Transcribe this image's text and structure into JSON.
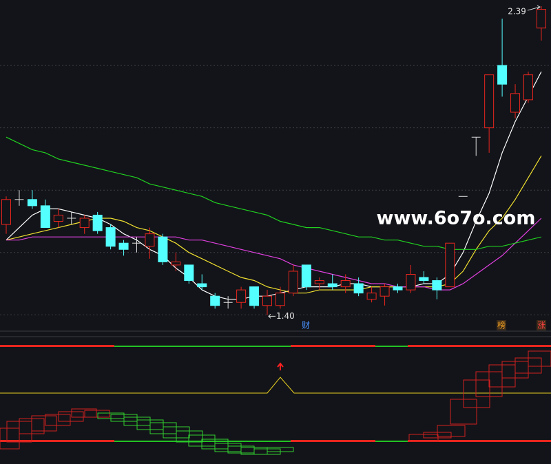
{
  "chart_data": {
    "type": "candlestick",
    "ylim": [
      1.35,
      2.41
    ],
    "grid_lines": [
      1.4,
      1.6,
      1.8,
      2.0,
      2.2
    ],
    "up_color": "#e8261e",
    "down_color": "#54ffff",
    "flat_color": "#e0e0e0",
    "open": [
      1.69,
      1.77,
      1.77,
      1.75,
      1.7,
      1.71,
      1.68,
      1.72,
      1.68,
      1.63,
      1.63,
      1.62,
      1.65,
      1.56,
      1.56,
      1.5,
      1.46,
      1.44,
      1.44,
      1.49,
      1.43,
      1.43,
      1.47,
      1.56,
      1.5,
      1.5,
      1.49,
      1.5,
      1.45,
      1.46,
      1.49,
      1.48,
      1.52,
      1.51,
      1.49,
      1.78,
      1.97,
      2.0,
      2.2,
      2.05,
      2.09,
      2.32
    ],
    "high": [
      1.78,
      1.8,
      1.8,
      1.77,
      1.74,
      1.73,
      1.72,
      1.73,
      1.69,
      1.64,
      1.65,
      1.68,
      1.66,
      1.6,
      1.56,
      1.53,
      1.47,
      1.46,
      1.49,
      1.49,
      1.48,
      1.49,
      1.56,
      1.56,
      1.52,
      1.53,
      1.53,
      1.52,
      1.49,
      1.5,
      1.5,
      1.56,
      1.54,
      1.52,
      1.63,
      1.78,
      1.97,
      2.17,
      2.35,
      2.14,
      2.18,
      2.39
    ],
    "low": [
      1.66,
      1.75,
      1.74,
      1.68,
      1.68,
      1.69,
      1.66,
      1.66,
      1.61,
      1.59,
      1.6,
      1.58,
      1.56,
      1.54,
      1.5,
      1.48,
      1.42,
      1.42,
      1.42,
      1.42,
      1.4,
      1.42,
      1.46,
      1.48,
      1.48,
      1.48,
      1.47,
      1.46,
      1.44,
      1.43,
      1.47,
      1.47,
      1.5,
      1.45,
      1.49,
      1.78,
      1.91,
      1.92,
      2.1,
      2.03,
      2.08,
      2.28
    ],
    "close": [
      1.77,
      1.77,
      1.75,
      1.68,
      1.72,
      1.71,
      1.71,
      1.67,
      1.62,
      1.61,
      1.63,
      1.66,
      1.57,
      1.57,
      1.51,
      1.49,
      1.43,
      1.44,
      1.48,
      1.43,
      1.46,
      1.47,
      1.54,
      1.49,
      1.51,
      1.49,
      1.51,
      1.47,
      1.47,
      1.49,
      1.48,
      1.53,
      1.51,
      1.48,
      1.63,
      1.78,
      1.97,
      2.17,
      2.14,
      2.11,
      2.17,
      2.38
    ],
    "lines": [
      {
        "color": "#ffffff",
        "values": [
          1.64,
          1.68,
          1.72,
          1.74,
          1.74,
          1.73,
          1.72,
          1.71,
          1.69,
          1.66,
          1.64,
          1.61,
          1.59,
          1.55,
          1.52,
          1.48,
          1.46,
          1.45,
          1.45,
          1.46,
          1.46,
          1.47,
          1.48,
          1.49,
          1.49,
          1.49,
          1.5,
          1.5,
          1.49,
          1.49,
          1.49,
          1.49,
          1.5,
          1.5,
          1.53,
          1.6,
          1.7,
          1.79,
          1.92,
          2.02,
          2.1,
          2.18
        ]
      },
      {
        "color": "#f0e030",
        "values": [
          1.64,
          1.65,
          1.66,
          1.67,
          1.68,
          1.69,
          1.7,
          1.71,
          1.71,
          1.7,
          1.68,
          1.67,
          1.65,
          1.63,
          1.6,
          1.58,
          1.56,
          1.54,
          1.52,
          1.51,
          1.49,
          1.48,
          1.47,
          1.47,
          1.48,
          1.48,
          1.48,
          1.48,
          1.49,
          1.49,
          1.49,
          1.49,
          1.49,
          1.49,
          1.5,
          1.54,
          1.61,
          1.67,
          1.71,
          1.77,
          1.84,
          1.91
        ]
      },
      {
        "color": "#e040e0",
        "values": [
          1.64,
          1.64,
          1.65,
          1.65,
          1.65,
          1.65,
          1.65,
          1.65,
          1.65,
          1.65,
          1.65,
          1.65,
          1.65,
          1.65,
          1.64,
          1.64,
          1.63,
          1.62,
          1.61,
          1.6,
          1.59,
          1.58,
          1.56,
          1.55,
          1.54,
          1.53,
          1.52,
          1.51,
          1.5,
          1.5,
          1.49,
          1.49,
          1.49,
          1.48,
          1.48,
          1.5,
          1.53,
          1.56,
          1.59,
          1.63,
          1.67,
          1.71
        ]
      },
      {
        "color": "#20d020",
        "values": [
          1.97,
          1.95,
          1.93,
          1.92,
          1.9,
          1.89,
          1.88,
          1.87,
          1.86,
          1.85,
          1.84,
          1.82,
          1.81,
          1.8,
          1.79,
          1.78,
          1.76,
          1.75,
          1.74,
          1.73,
          1.72,
          1.7,
          1.69,
          1.68,
          1.68,
          1.67,
          1.66,
          1.65,
          1.65,
          1.64,
          1.64,
          1.63,
          1.62,
          1.62,
          1.61,
          1.61,
          1.61,
          1.62,
          1.62,
          1.63,
          1.64,
          1.65
        ]
      }
    ],
    "high_label": "2.39",
    "low_label": "1.40",
    "markers": [
      "财",
      "榜",
      "涨"
    ],
    "watermark": "www.6o7o.com"
  }
}
